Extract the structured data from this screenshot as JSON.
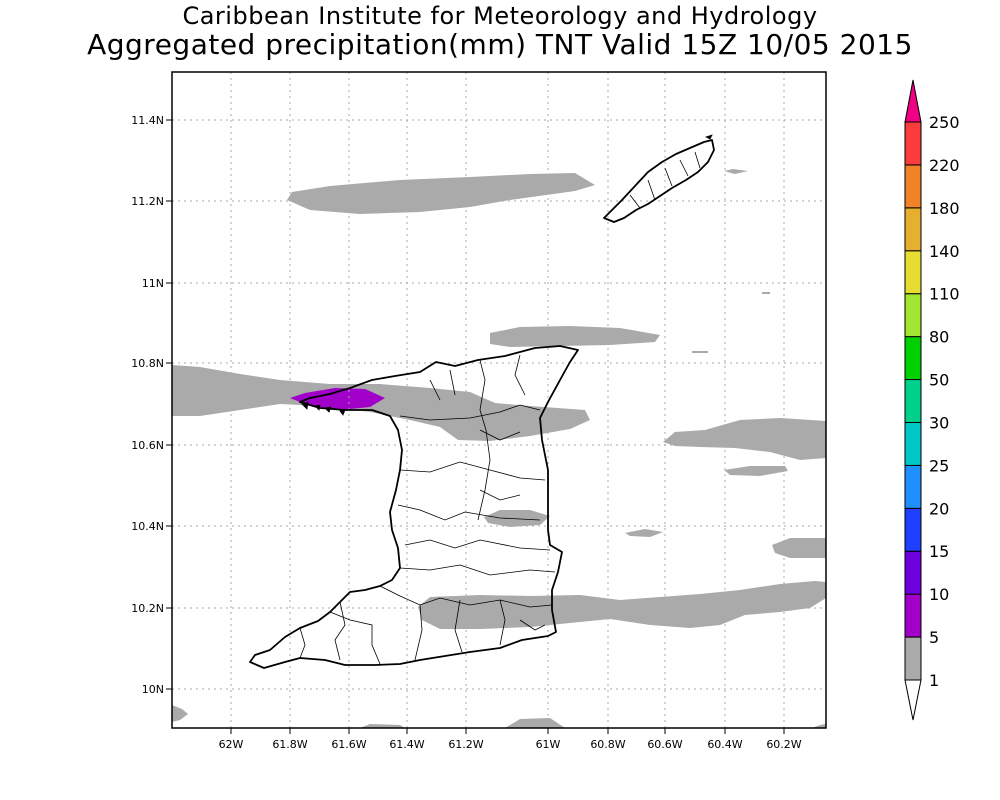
{
  "header": {
    "title_line1": "Caribbean Institute for Meteorology and Hydrology",
    "title_line2": "Aggregated precipitation(mm) TNT Valid 15Z 10/05 2015"
  },
  "map": {
    "lon_ticks": [
      "62W",
      "61.8W",
      "61.6W",
      "61.4W",
      "61.2W",
      "61W",
      "60.8W",
      "60.6W",
      "60.4W",
      "60.2W"
    ],
    "lat_ticks": [
      "11.4N",
      "11.2N",
      "11N",
      "10.8N",
      "10.6N",
      "10.4N",
      "10.2N",
      "10N"
    ],
    "grid": true,
    "regions": [
      "Trinidad",
      "Tobago"
    ],
    "precip_classes_present": [
      "1-5",
      "5-10"
    ]
  },
  "colorbar": {
    "levels": [
      {
        "label": "1",
        "color": "#ffffff"
      },
      {
        "label": "5",
        "color": "#aaaaaa"
      },
      {
        "label": "10",
        "color": "#a000c8"
      },
      {
        "label": "15",
        "color": "#7000e0"
      },
      {
        "label": "20",
        "color": "#2040ff"
      },
      {
        "label": "25",
        "color": "#1e90ff"
      },
      {
        "label": "30",
        "color": "#00c8c8"
      },
      {
        "label": "50",
        "color": "#00d08c"
      },
      {
        "label": "80",
        "color": "#00d000"
      },
      {
        "label": "110",
        "color": "#a0e632"
      },
      {
        "label": "140",
        "color": "#e6dc32"
      },
      {
        "label": "180",
        "color": "#e6af2d"
      },
      {
        "label": "220",
        "color": "#f08228"
      },
      {
        "label": "250",
        "color": "#fa3c3c"
      }
    ],
    "top_color": "#f00082",
    "bottom_color": "#ffffff"
  }
}
